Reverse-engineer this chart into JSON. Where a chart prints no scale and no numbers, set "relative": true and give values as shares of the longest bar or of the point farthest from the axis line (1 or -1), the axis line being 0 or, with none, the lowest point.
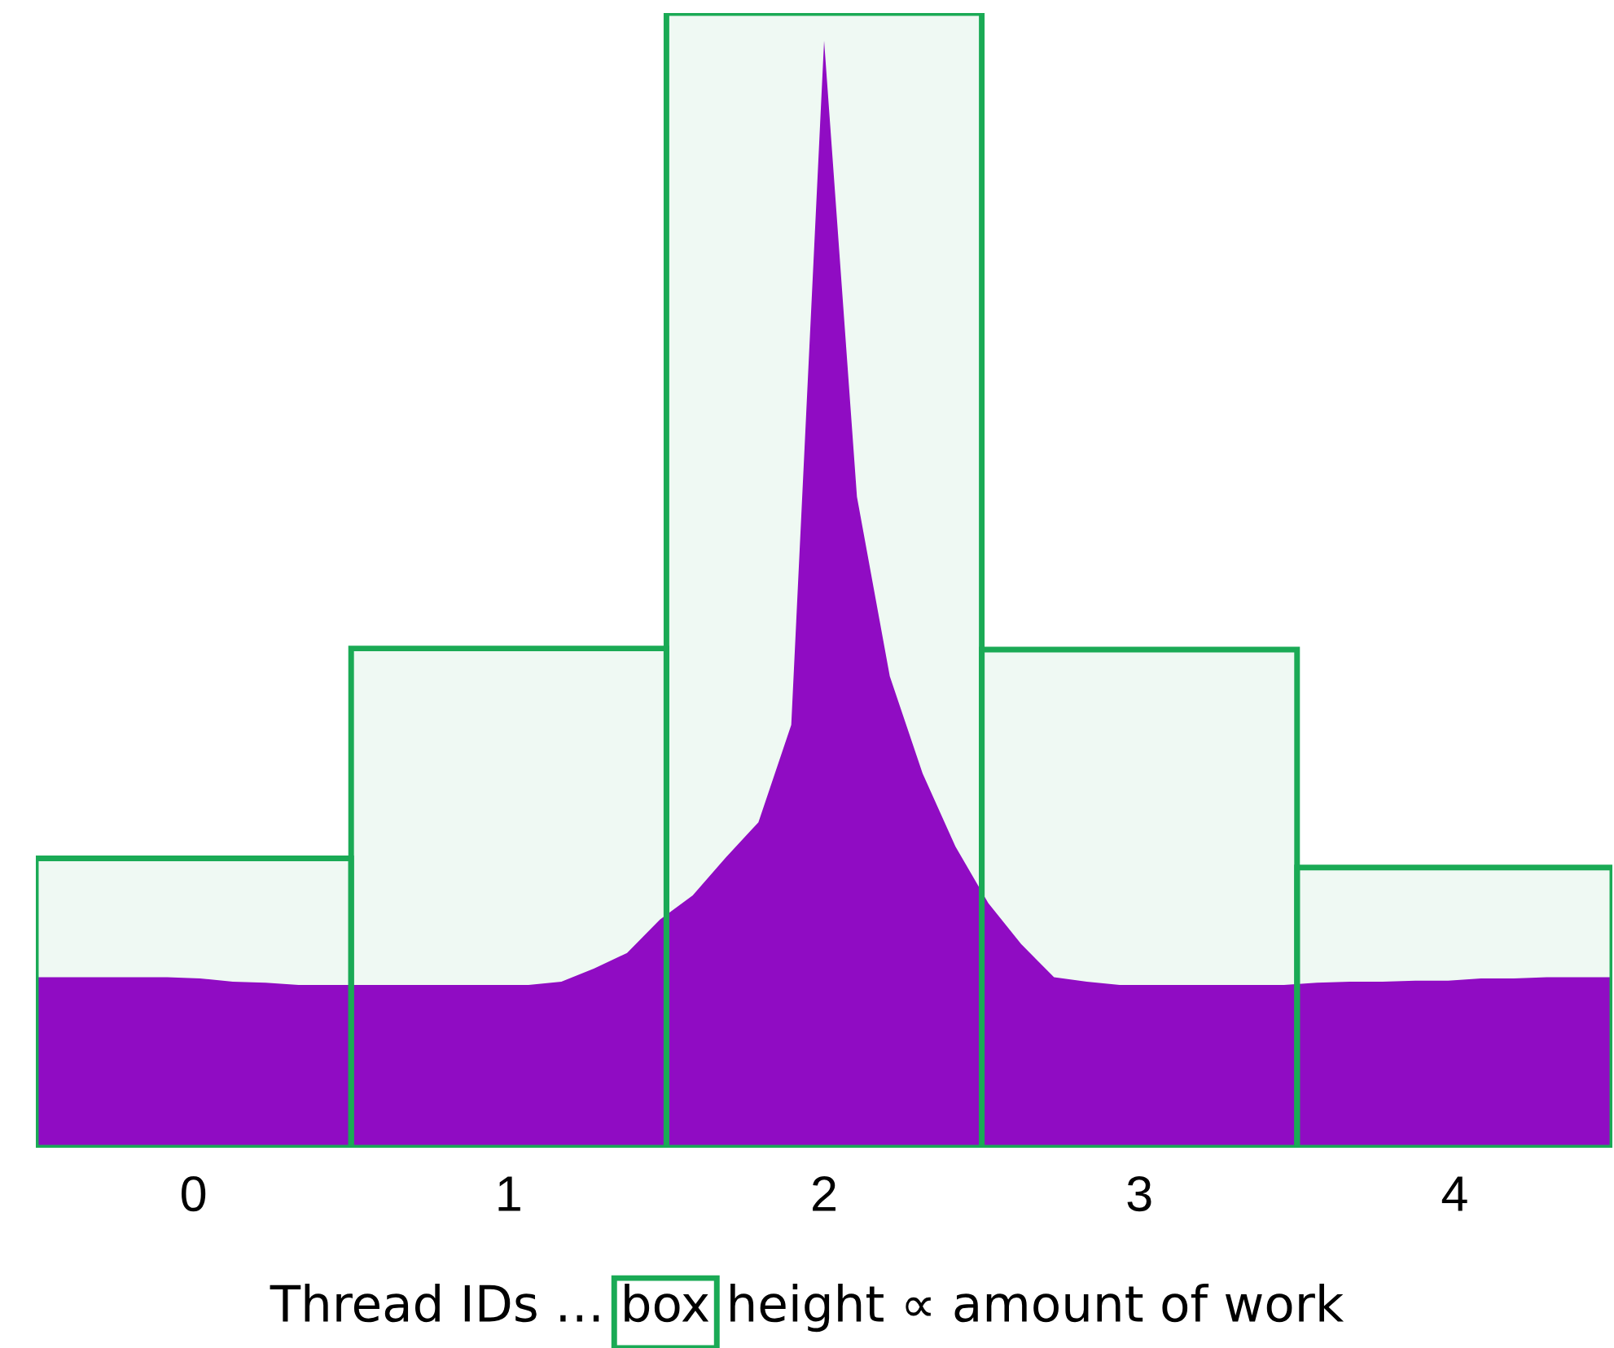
{
  "chart_data": [
    {
      "type": "bar",
      "relative": true,
      "tick_labels": "x",
      "xlabel": "Thread IDs … box height ∝ amount of work",
      "categories": [
        "0",
        "1",
        "2",
        "3",
        "4"
      ],
      "series": [
        {
          "color": "#1aaa55",
          "values": [
            0.255,
            0.44,
            1.0,
            0.439,
            0.247
          ]
        }
      ]
    },
    {
      "type": "area",
      "relative": true,
      "tick_labels": false,
      "categories": [
        null,
        null,
        null,
        null,
        null,
        null,
        null,
        null,
        null,
        null,
        null,
        null,
        null,
        null,
        null,
        null,
        null,
        null,
        null,
        null,
        null,
        null,
        null,
        null,
        null,
        null,
        null,
        null,
        null,
        null,
        null,
        null,
        null,
        null,
        null,
        null,
        null,
        null,
        null,
        null,
        null,
        null,
        null,
        null,
        null,
        null,
        null,
        null,
        null
      ],
      "series": [
        {
          "color": "#9900cc",
          "values": [
            0.154,
            0.154,
            0.154,
            0.154,
            0.154,
            0.153,
            0.15,
            0.149,
            0.147,
            0.147,
            0.147,
            0.147,
            0.147,
            0.147,
            0.147,
            0.147,
            0.15,
            0.162,
            0.176,
            0.206,
            0.228,
            0.262,
            0.294,
            0.382,
            1.0,
            0.588,
            0.426,
            0.338,
            0.272,
            0.221,
            0.184,
            0.154,
            0.15,
            0.147,
            0.147,
            0.147,
            0.147,
            0.147,
            0.147,
            0.149,
            0.15,
            0.15,
            0.151,
            0.151,
            0.153,
            0.153,
            0.154,
            0.154,
            0.154
          ]
        }
      ]
    }
  ]
}
